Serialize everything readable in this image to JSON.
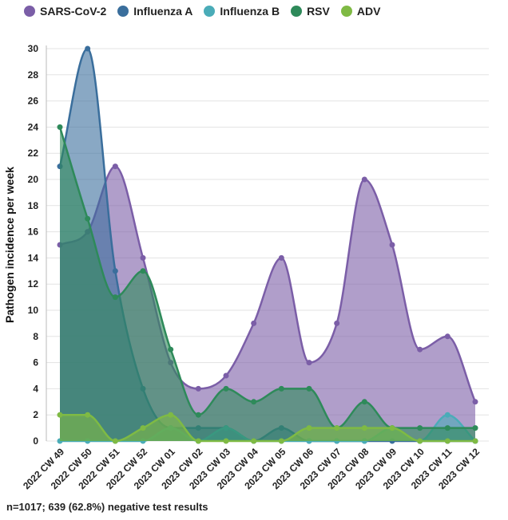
{
  "chart_data": {
    "type": "area",
    "title": "",
    "xlabel": "",
    "ylabel": "Pathogen incidence per week",
    "ylim": [
      0,
      30
    ],
    "yticks": [
      0,
      2,
      4,
      6,
      8,
      10,
      12,
      14,
      16,
      18,
      20,
      22,
      24,
      26,
      28,
      30
    ],
    "grid": true,
    "legend_position": "top",
    "categories": [
      "2022 CW 49",
      "2022 CW 50",
      "2022 CW 51",
      "2022 CW 52",
      "2023 CW 01",
      "2023 CW 02",
      "2023 CW 03",
      "2023 CW 04",
      "2023 CW 05",
      "2023 CW 06",
      "2023 CW 07",
      "2023 CW 08",
      "2023 CW 09",
      "2023 CW 10",
      "2023 CW 11",
      "2023 CW 12"
    ],
    "series": [
      {
        "name": "SARS-CoV-2",
        "color": "#7b5ea7",
        "values": [
          15,
          16,
          21,
          14,
          6,
          4,
          5,
          9,
          14,
          6,
          9,
          20,
          15,
          7,
          8,
          3
        ]
      },
      {
        "name": "Influenza A",
        "color": "#3a6e9c",
        "values": [
          21,
          30,
          13,
          4,
          1,
          1,
          1,
          0,
          1,
          0,
          0,
          0,
          0,
          0,
          0,
          0
        ]
      },
      {
        "name": "Influenza B",
        "color": "#4aacb8",
        "values": [
          0,
          0,
          0,
          0,
          1,
          0,
          1,
          0,
          0,
          0,
          0,
          0,
          1,
          0,
          2,
          0
        ]
      },
      {
        "name": "RSV",
        "color": "#2e8a5a",
        "values": [
          24,
          17,
          11,
          13,
          7,
          2,
          4,
          3,
          4,
          4,
          1,
          3,
          1,
          1,
          1,
          1
        ]
      },
      {
        "name": "ADV",
        "color": "#7fba44",
        "values": [
          2,
          2,
          0,
          1,
          2,
          0,
          0,
          0,
          0,
          1,
          1,
          1,
          1,
          0,
          0,
          0
        ]
      }
    ]
  },
  "footnote": "n=1017; 639 (62.8%) negative test results"
}
